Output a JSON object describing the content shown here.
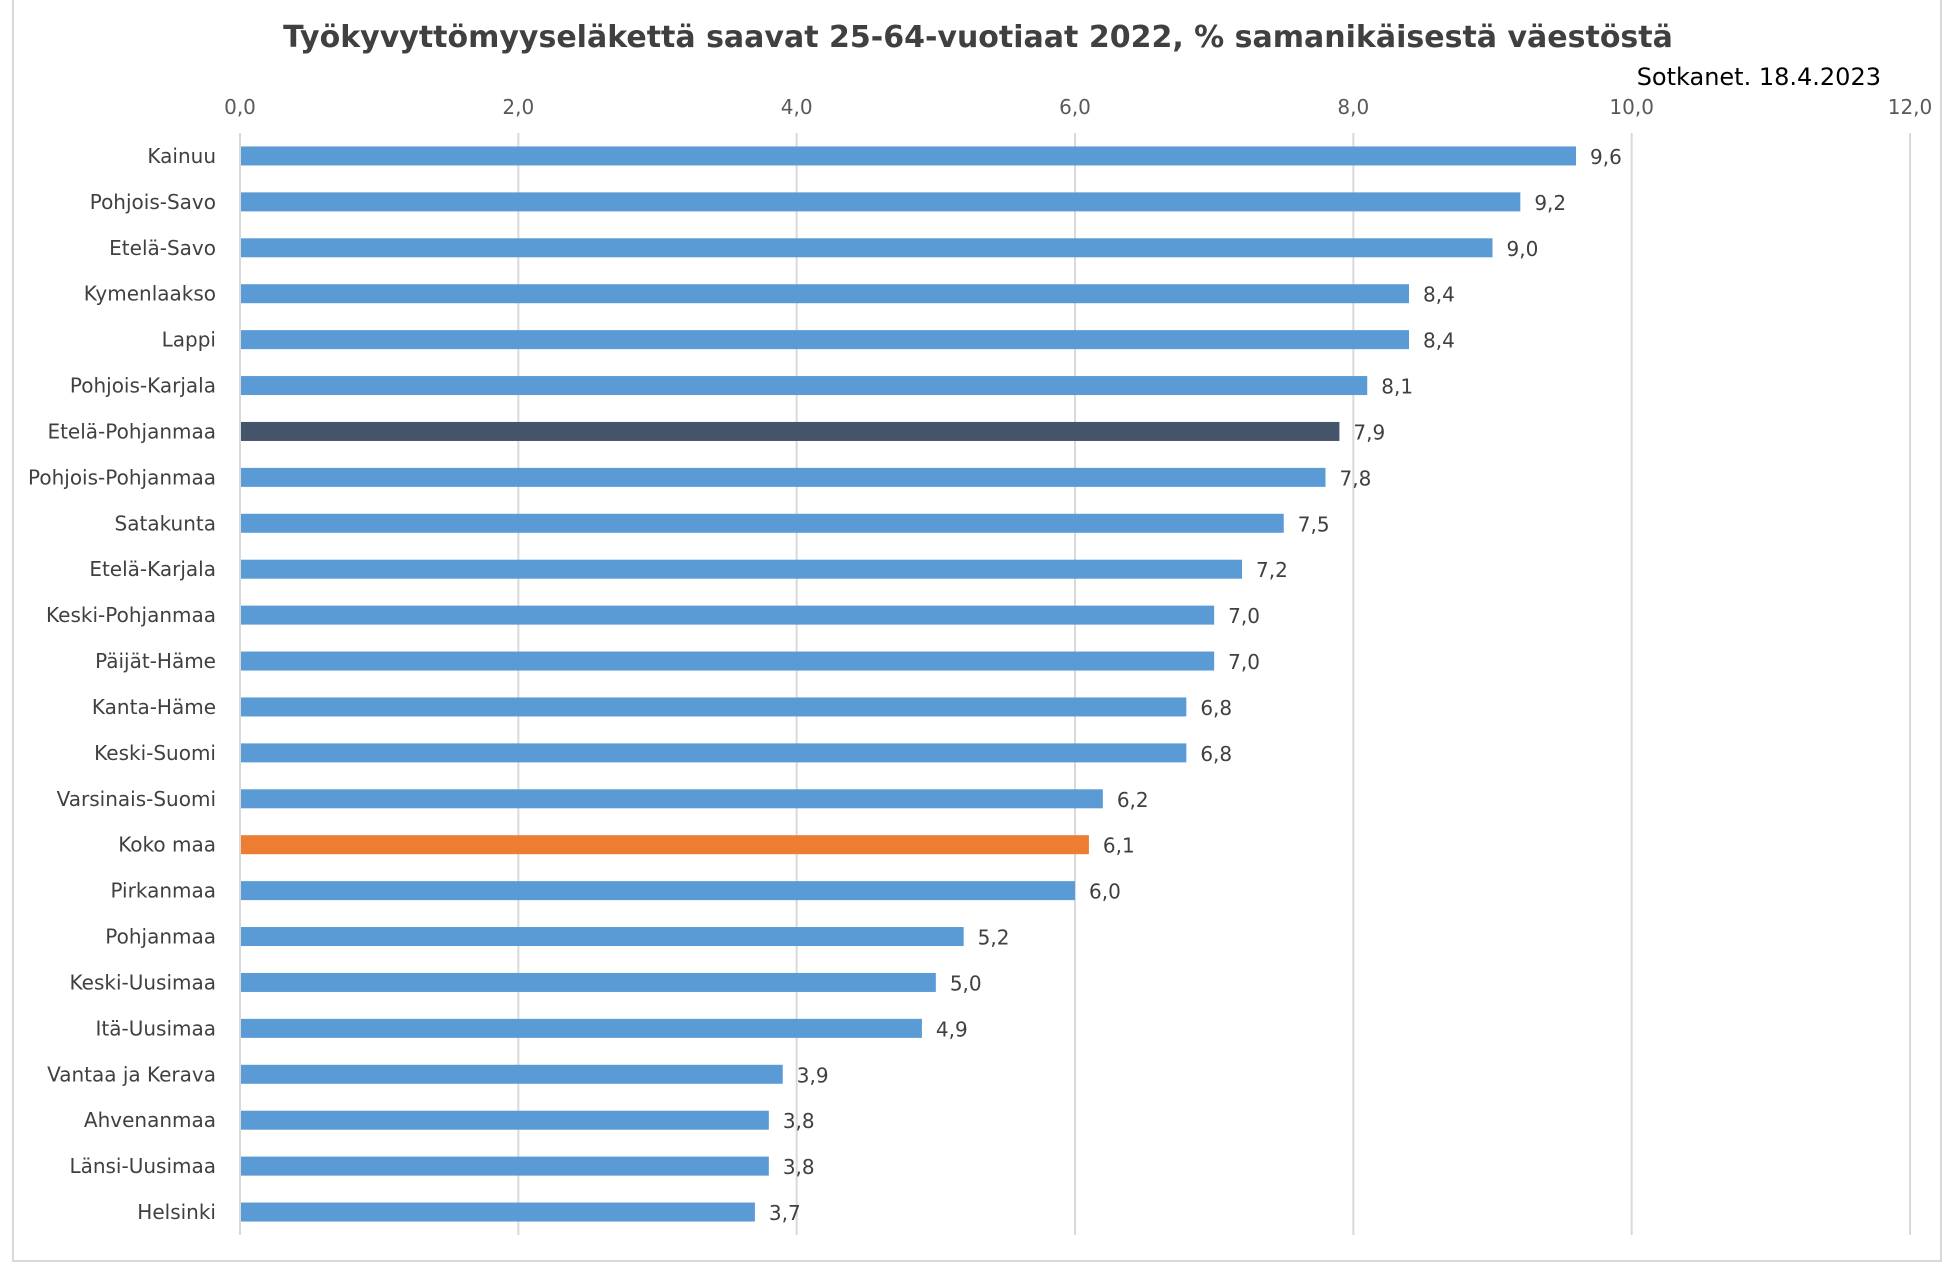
{
  "chart_data": {
    "type": "bar",
    "orientation": "horizontal",
    "title": "Työkyvyttömyyseläkettä saavat 25-64-vuotiaat 2022, % samanikäisestä väestöstä",
    "source_note": "Sotkanet. 18.4.2023",
    "xlim": [
      0,
      12
    ],
    "xticks": [
      "0,0",
      "2,0",
      "4,0",
      "6,0",
      "8,0",
      "10,0",
      "12,0"
    ],
    "axis_position": "top",
    "grid": true,
    "legend": "none",
    "categories": [
      "Kainuu",
      "Pohjois-Savo",
      "Etelä-Savo",
      "Kymenlaakso",
      "Lappi",
      "Pohjois-Karjala",
      "Etelä-Pohjanmaa",
      "Pohjois-Pohjanmaa",
      "Satakunta",
      "Etelä-Karjala",
      "Keski-Pohjanmaa",
      "Päijät-Häme",
      "Kanta-Häme",
      "Keski-Suomi",
      "Varsinais-Suomi",
      "Koko maa",
      "Pirkanmaa",
      "Pohjanmaa",
      "Keski-Uusimaa",
      "Itä-Uusimaa",
      "Vantaa ja Kerava",
      "Ahvenanmaa",
      "Länsi-Uusimaa",
      "Helsinki"
    ],
    "values": [
      9.6,
      9.2,
      9.0,
      8.4,
      8.4,
      8.1,
      7.9,
      7.8,
      7.5,
      7.2,
      7.0,
      7.0,
      6.8,
      6.8,
      6.2,
      6.1,
      6.0,
      5.2,
      5.0,
      4.9,
      3.9,
      3.8,
      3.8,
      3.7
    ],
    "data_labels": [
      "9,6",
      "9,2",
      "9,0",
      "8,4",
      "8,4",
      "8,1",
      "7,9",
      "7,8",
      "7,5",
      "7,2",
      "7,0",
      "7,0",
      "6,8",
      "6,8",
      "6,2",
      "6,1",
      "6,0",
      "5,2",
      "5,0",
      "4,9",
      "3,9",
      "3,8",
      "3,8",
      "3,7"
    ],
    "colors": {
      "default": "#5b9bd5",
      "Etelä-Pohjanmaa": "#44546a",
      "Koko maa": "#ed7d31",
      "grid": "#d9d9d9"
    }
  }
}
